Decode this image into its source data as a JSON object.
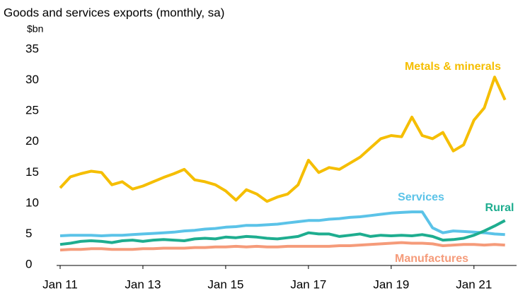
{
  "chart_data": {
    "type": "line",
    "title": "Goods and services exports (monthly, sa)",
    "y_label": "$bn",
    "categories": [
      "Jan 11",
      null,
      null,
      null,
      null,
      null,
      null,
      null,
      "Jan 13",
      null,
      null,
      null,
      null,
      null,
      null,
      null,
      "Jan 15",
      null,
      null,
      null,
      null,
      null,
      null,
      null,
      "Jan 17",
      null,
      null,
      null,
      null,
      null,
      null,
      null,
      "Jan 19",
      null,
      null,
      null,
      null,
      null,
      null,
      null,
      "Jan 21",
      null,
      null,
      null
    ],
    "series": [
      {
        "name": "Metals & minerals",
        "color": "#f5be00",
        "values": [
          12.5,
          14.3,
          14.8,
          15.2,
          15.0,
          13.0,
          13.5,
          12.3,
          12.8,
          13.5,
          14.2,
          14.8,
          15.5,
          13.8,
          13.5,
          13.0,
          12.0,
          10.5,
          12.2,
          11.5,
          10.3,
          11.0,
          11.5,
          13.0,
          17.0,
          15.0,
          15.8,
          15.5,
          16.5,
          17.5,
          19.0,
          20.5,
          21.0,
          20.8,
          24.0,
          21.0,
          20.5,
          21.5,
          18.5,
          19.5,
          23.5,
          25.5,
          30.5,
          26.8
        ]
      },
      {
        "name": "Services",
        "color": "#5bc3e8",
        "values": [
          4.7,
          4.8,
          4.8,
          4.8,
          4.7,
          4.8,
          4.8,
          4.9,
          5.0,
          5.1,
          5.2,
          5.3,
          5.5,
          5.6,
          5.8,
          5.9,
          6.1,
          6.2,
          6.4,
          6.4,
          6.5,
          6.6,
          6.8,
          7.0,
          7.2,
          7.2,
          7.4,
          7.5,
          7.7,
          7.8,
          8.0,
          8.2,
          8.4,
          8.5,
          8.6,
          8.6,
          6.0,
          5.2,
          5.5,
          5.4,
          5.3,
          5.2,
          5.0,
          4.9
        ]
      },
      {
        "name": "Rural",
        "color": "#1ead8f",
        "values": [
          3.3,
          3.5,
          3.8,
          3.9,
          3.8,
          3.6,
          3.9,
          4.0,
          3.8,
          4.0,
          4.1,
          4.0,
          3.9,
          4.2,
          4.3,
          4.2,
          4.5,
          4.4,
          4.6,
          4.5,
          4.3,
          4.2,
          4.4,
          4.6,
          5.2,
          5.0,
          5.0,
          4.6,
          4.8,
          5.0,
          4.6,
          4.8,
          4.7,
          4.8,
          4.7,
          4.9,
          4.6,
          4.0,
          4.1,
          4.3,
          4.8,
          5.5,
          6.3,
          7.2
        ]
      },
      {
        "name": "Manufactures",
        "color": "#f59b7a",
        "values": [
          2.4,
          2.5,
          2.5,
          2.6,
          2.6,
          2.5,
          2.5,
          2.5,
          2.6,
          2.6,
          2.7,
          2.7,
          2.7,
          2.8,
          2.8,
          2.9,
          2.9,
          3.0,
          2.9,
          3.0,
          2.9,
          2.9,
          3.0,
          3.0,
          3.0,
          3.0,
          3.0,
          3.1,
          3.1,
          3.2,
          3.3,
          3.4,
          3.5,
          3.6,
          3.5,
          3.5,
          3.4,
          3.1,
          3.2,
          3.3,
          3.3,
          3.2,
          3.3,
          3.2
        ]
      }
    ],
    "ylim": [
      0,
      35
    ],
    "yticks": [
      0,
      5,
      10,
      15,
      20,
      25,
      30,
      35
    ],
    "grid": false
  }
}
